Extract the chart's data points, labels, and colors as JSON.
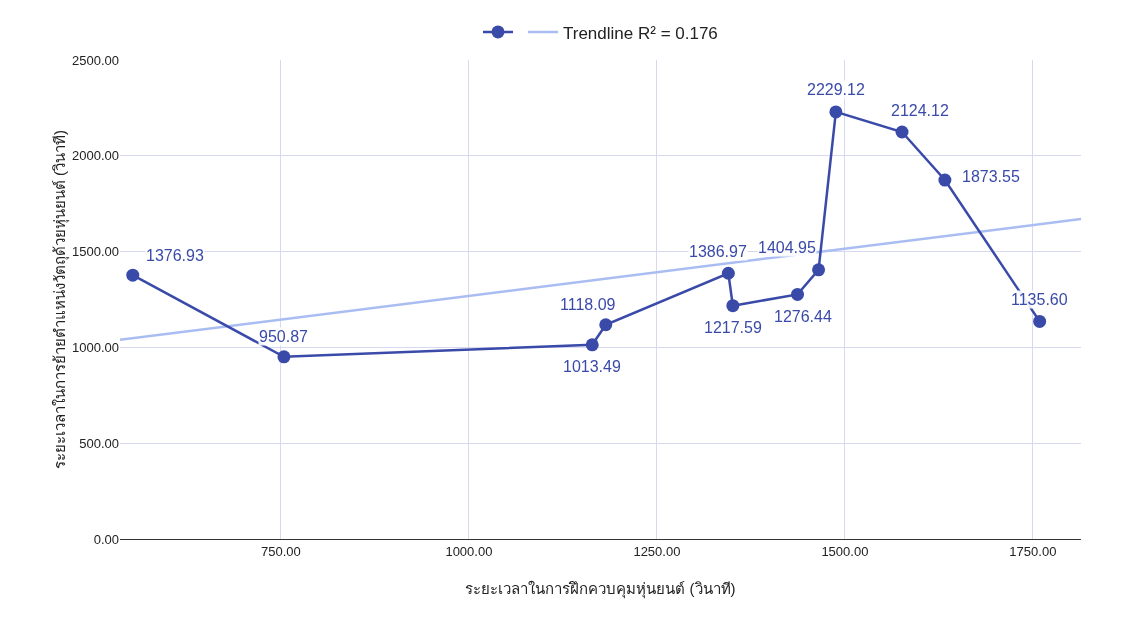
{
  "chart_data": {
    "type": "line",
    "xlabel": "ระยะเวลาในการฝึกควบคุมหุ่นยนต์ (วินาที)",
    "ylabel": "ระยะเวลาในการย้ายตำแหน่งวัตถุด้วยหุ่นยนต์ (วินาที)",
    "xlim": [
      536,
      1814
    ],
    "xticks": [
      {
        "value": 750,
        "label": "750.00"
      },
      {
        "value": 1000,
        "label": "1000.00"
      },
      {
        "value": 1250,
        "label": "1250.00"
      },
      {
        "value": 1500,
        "label": "1500.00"
      },
      {
        "value": 1750,
        "label": "1750.00"
      }
    ],
    "ylim": [
      0,
      2500
    ],
    "yticks": [
      {
        "value": 0,
        "label": "0.00"
      },
      {
        "value": 500,
        "label": "500.00"
      },
      {
        "value": 1000,
        "label": "1000.00"
      },
      {
        "value": 1500,
        "label": "1500.00"
      },
      {
        "value": 2000,
        "label": "2000.00"
      },
      {
        "value": 2500,
        "label": "2500.00"
      }
    ],
    "grid": true,
    "legend": "top",
    "marker": "circle",
    "line_style": "solid",
    "series": [
      {
        "color": "#3a4aa8",
        "x": [
          553,
          754,
          1164,
          1182,
          1345,
          1351,
          1437,
          1465,
          1488,
          1576,
          1633,
          1759
        ],
        "values": [
          1376.93,
          950.87,
          1013.49,
          1118.09,
          1386.97,
          1217.59,
          1276.44,
          1404.95,
          2229.12,
          2124.12,
          1873.55,
          1135.6
        ],
        "value_labels": [
          "1376.93",
          "950.87",
          "1013.49",
          "1118.09",
          "1386.97",
          "1217.59",
          "1276.44",
          "1404.95",
          "2229.12",
          "2124.12",
          "1873.55",
          "1135.60"
        ]
      },
      {
        "name": "Trendline R² = 0.176",
        "color": "#a9bdf3",
        "marker": "none",
        "x": [
          536,
          1814
        ],
        "values": [
          1040,
          1670
        ]
      }
    ]
  }
}
